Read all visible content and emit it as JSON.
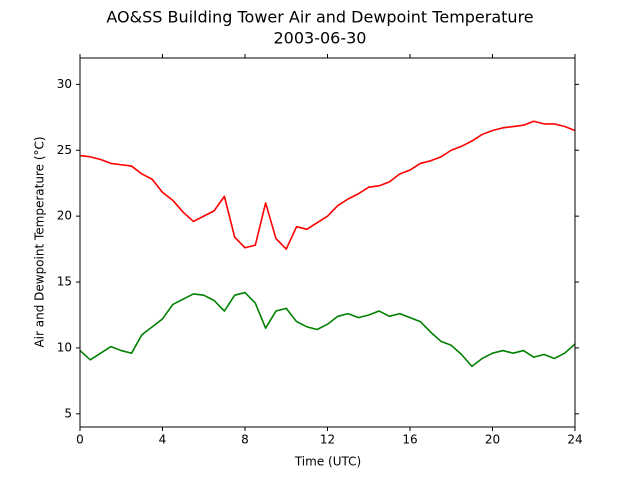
{
  "chart_data": {
    "type": "line",
    "title": "AO&SS Building Tower Air and Dewpoint Temperature",
    "subtitle": "2003-06-30",
    "x_label": "Time (UTC)",
    "y_label": "Air and Dewpoint Temperature (°C)",
    "x": [
      0,
      0.5,
      1,
      1.5,
      2,
      2.5,
      3,
      3.5,
      4,
      4.5,
      5,
      5.5,
      6,
      6.5,
      7,
      7.5,
      8,
      8.5,
      9,
      9.5,
      10,
      10.5,
      11,
      11.5,
      12,
      12.5,
      13,
      13.5,
      14,
      14.5,
      15,
      15.5,
      16,
      16.5,
      17,
      17.5,
      18,
      18.5,
      19,
      19.5,
      20,
      20.5,
      21,
      21.5,
      22,
      22.5,
      23,
      23.5,
      24
    ],
    "series": [
      {
        "color": "#ff0000",
        "values": [
          24.6,
          24.5,
          24.3,
          24.0,
          23.9,
          23.8,
          23.2,
          22.8,
          21.8,
          21.2,
          20.3,
          19.6,
          20.0,
          20.4,
          21.5,
          18.4,
          17.6,
          17.8,
          21.0,
          18.3,
          17.5,
          19.2,
          19.0,
          19.5,
          20.0,
          20.8,
          21.3,
          21.7,
          22.2,
          22.3,
          22.6,
          23.2,
          23.5,
          24.0,
          24.2,
          24.5,
          25.0,
          25.3,
          25.7,
          26.2,
          26.5,
          26.7,
          26.8,
          26.9,
          27.2,
          27.0,
          27.0,
          26.8,
          26.5
        ]
      },
      {
        "color": "#008000",
        "values": [
          9.8,
          9.1,
          9.6,
          10.1,
          9.8,
          9.6,
          11.0,
          11.6,
          12.2,
          13.3,
          13.7,
          14.1,
          14.0,
          13.6,
          12.8,
          14.0,
          14.2,
          13.4,
          11.5,
          12.8,
          13.0,
          12.0,
          11.6,
          11.4,
          11.8,
          12.4,
          12.6,
          12.3,
          12.5,
          12.8,
          12.4,
          12.6,
          12.3,
          12.0,
          11.2,
          10.5,
          10.2,
          9.5,
          8.6,
          9.2,
          9.6,
          9.8,
          9.6,
          9.8,
          9.3,
          9.5,
          9.2,
          9.6,
          10.3
        ]
      }
    ],
    "xlim": [
      0,
      24
    ],
    "xticks": [
      0,
      4,
      8,
      12,
      16,
      20,
      24
    ],
    "ylim": [
      4,
      32
    ],
    "yticks": [
      5,
      10,
      15,
      20,
      25,
      30
    ],
    "grid": false
  }
}
